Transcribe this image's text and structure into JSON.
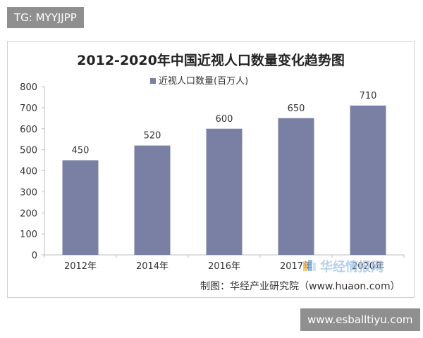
{
  "badges": {
    "top_left": "TG: MYYJJPP",
    "bottom_right": "www.esballtiyu.com"
  },
  "watermark": {
    "text": "华经情报网"
  },
  "chart_data": {
    "type": "bar",
    "title": "2012-2020年中国近视人口数量变化趋势图",
    "categories": [
      "2012年",
      "2014年",
      "2016年",
      "2017年",
      "2020年"
    ],
    "series": [
      {
        "name": "近视人口数量(百万人)",
        "values": [
          450,
          520,
          600,
          650,
          710
        ],
        "color": "#7a7fa4"
      }
    ],
    "ylim": [
      0,
      800
    ],
    "yticks": [
      0,
      100,
      200,
      300,
      400,
      500,
      600,
      700,
      800
    ],
    "legend_position": "top-center",
    "grid": false,
    "source_note": "制图：华经产业研究院（www.huaon.com）"
  }
}
